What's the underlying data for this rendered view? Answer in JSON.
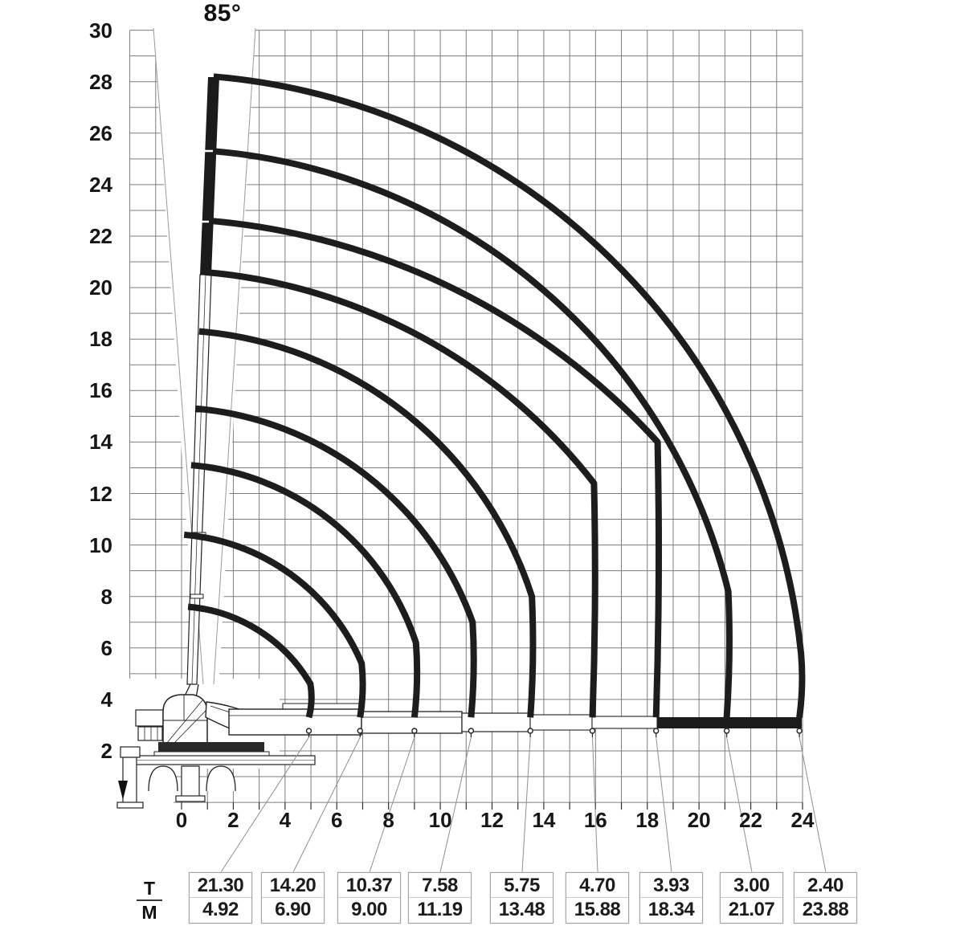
{
  "title": {
    "boom_angle_label": "85°"
  },
  "legend": {
    "numerator": "T",
    "denominator": "M"
  },
  "chart_data": {
    "type": "line",
    "description": "Crane working range and load capacity diagram (boom envelope curves)",
    "boom_angle_deg": 85,
    "grid": true,
    "grid_step_m": 1,
    "x_axis": {
      "unit": "m",
      "min": -2,
      "max": 24,
      "label_step": 2,
      "tick_labels": [
        "0",
        "2",
        "4",
        "6",
        "8",
        "10",
        "12",
        "14",
        "16",
        "18",
        "20",
        "22",
        "24"
      ]
    },
    "y_axis": {
      "unit": "m",
      "min": 0,
      "max": 30,
      "label_step": 2,
      "tick_labels": [
        "2",
        "4",
        "6",
        "8",
        "10",
        "12",
        "14",
        "16",
        "18",
        "20",
        "22",
        "24",
        "26",
        "28",
        "30"
      ]
    },
    "capacity_table": [
      {
        "t": "21.30",
        "m": "4.92"
      },
      {
        "t": "14.20",
        "m": "6.90"
      },
      {
        "t": "10.37",
        "m": "9.00"
      },
      {
        "t": "7.58",
        "m": "11.19"
      },
      {
        "t": "5.75",
        "m": "13.48"
      },
      {
        "t": "4.70",
        "m": "15.88"
      },
      {
        "t": "3.93",
        "m": "18.34"
      },
      {
        "t": "3.00",
        "m": "21.07"
      },
      {
        "t": "2.40",
        "m": "23.88"
      }
    ],
    "curves": [
      {
        "outreach_m": 23.88,
        "capacity_t": 2.4,
        "top": {
          "x": 1.24,
          "y": 28.2
        },
        "knee_y": 5.8
      },
      {
        "outreach_m": 21.07,
        "capacity_t": 3.0,
        "top": {
          "x": 1.21,
          "y": 25.3
        },
        "knee_y": 8.2
      },
      {
        "outreach_m": 18.34,
        "capacity_t": 3.93,
        "top": {
          "x": 1.06,
          "y": 22.6
        },
        "knee_y": 14.0
      },
      {
        "outreach_m": 15.88,
        "capacity_t": 4.7,
        "top": {
          "x": 0.9,
          "y": 20.6
        },
        "knee_y": 12.4
      },
      {
        "outreach_m": 13.48,
        "capacity_t": 5.75,
        "top": {
          "x": 0.68,
          "y": 18.3
        },
        "knee_y": 8.0
      },
      {
        "outreach_m": 11.19,
        "capacity_t": 7.58,
        "top": {
          "x": 0.53,
          "y": 15.3
        },
        "knee_y": 7.0
      },
      {
        "outreach_m": 9.0,
        "capacity_t": 10.37,
        "top": {
          "x": 0.37,
          "y": 13.1
        },
        "knee_y": 6.2
      },
      {
        "outreach_m": 6.9,
        "capacity_t": 14.2,
        "top": {
          "x": 0.1,
          "y": 10.4
        },
        "knee_y": 5.4
      },
      {
        "outreach_m": 4.92,
        "capacity_t": 21.3,
        "top": {
          "x": 0.25,
          "y": 7.6
        },
        "knee_y": 4.6
      }
    ],
    "colors": {
      "curve": "#1d1d1d",
      "grid": "#7d7d7d",
      "text": "#161616",
      "leader": "#909090",
      "box_border": "#a6a6a6"
    }
  }
}
